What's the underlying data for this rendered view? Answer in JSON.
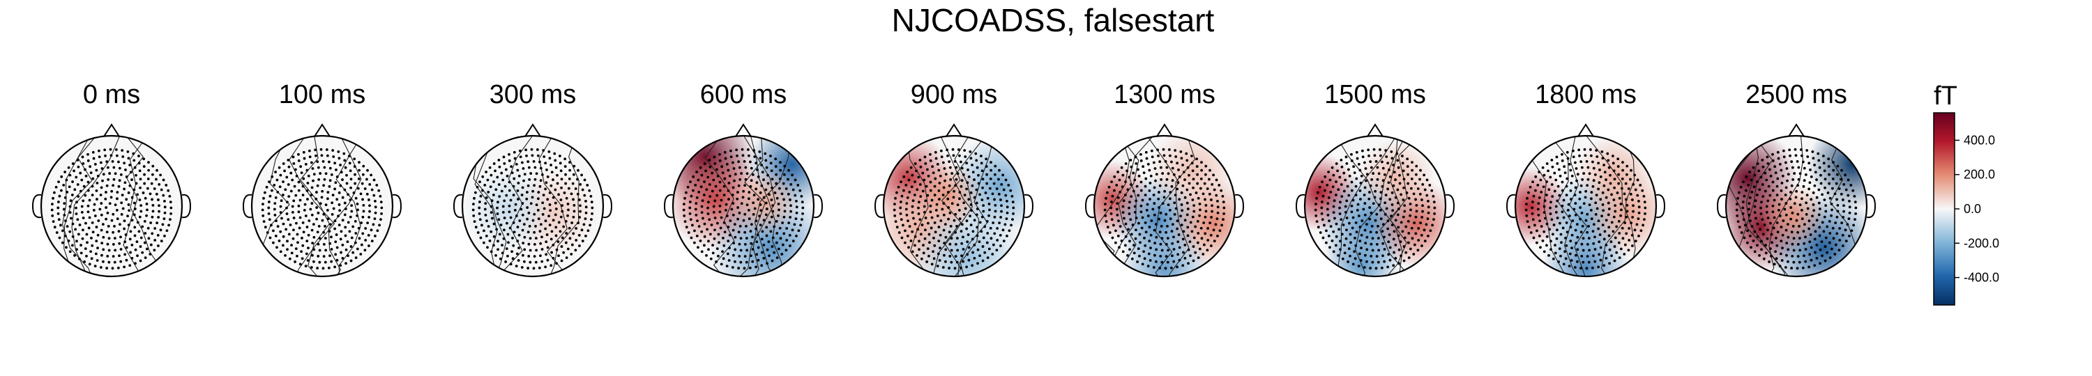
{
  "figure": {
    "title": "NJCOADSS, falsestart"
  },
  "maps": [
    {
      "label": "0 ms",
      "intensity": 0.0
    },
    {
      "label": "100 ms",
      "intensity": 0.0
    },
    {
      "label": "300 ms",
      "intensity": 0.12
    },
    {
      "label": "600 ms",
      "intensity": 0.55
    },
    {
      "label": "900 ms",
      "intensity": 0.35
    },
    {
      "label": "1300 ms",
      "intensity": 0.4
    },
    {
      "label": "1500 ms",
      "intensity": 0.45
    },
    {
      "label": "1800 ms",
      "intensity": 0.4
    },
    {
      "label": "2500 ms",
      "intensity": 0.7
    }
  ],
  "colorbar": {
    "unit": "fT",
    "ticks": [
      "400.0",
      "200.0",
      "0.0",
      "-200.0",
      "-400.0"
    ],
    "tick_values": [
      400,
      200,
      0,
      -200,
      -400
    ],
    "range": [
      -560,
      560
    ],
    "colormap": "RdBu_r",
    "colors": {
      "max": "#67001f",
      "mid_high": "#e08060",
      "zero": "#f7f7f7",
      "mid_low": "#6aa6d0",
      "min": "#053061"
    }
  }
}
